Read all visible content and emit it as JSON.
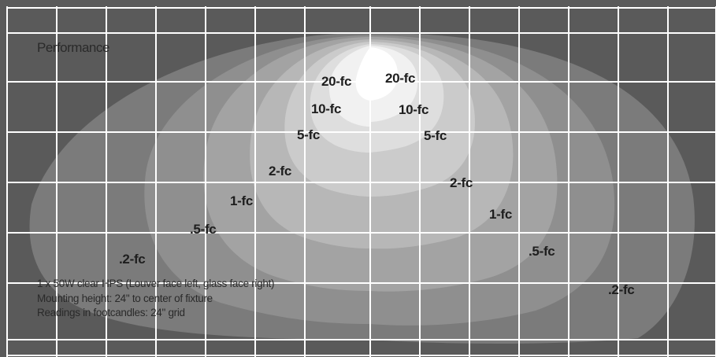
{
  "title": "Performance",
  "notes": [
    "1 x 50W clear HPS (Louver face left, glass face right)",
    "Mounting height: 24\" to center of fixture",
    "Readings in footcandles: 24\" grid"
  ],
  "contour_labels": {
    "left": {
      "fc20": "20-fc",
      "fc10": "10-fc",
      "fc5": "5-fc",
      "fc2": "2-fc",
      "fc1": "1-fc",
      "fc05": ".5-fc",
      "fc02": ".2-fc"
    },
    "right": {
      "fc20": "20-fc",
      "fc10": "10-fc",
      "fc5": "5-fc",
      "fc2": "2-fc",
      "fc1": "1-fc",
      "fc05": ".5-fc",
      "fc02": ".2-fc"
    }
  },
  "colors": {
    "background": "#5a5a5a",
    "fc02": "#7b7b7b",
    "fc05": "#8f8f8f",
    "fc1": "#a3a3a3",
    "fc2": "#b7b7b7",
    "fc5": "#cbcbcb",
    "fc10": "#dedede",
    "fc20": "#f1f1f1",
    "hotspot": "#ffffff",
    "grid": "#ffffff"
  }
}
